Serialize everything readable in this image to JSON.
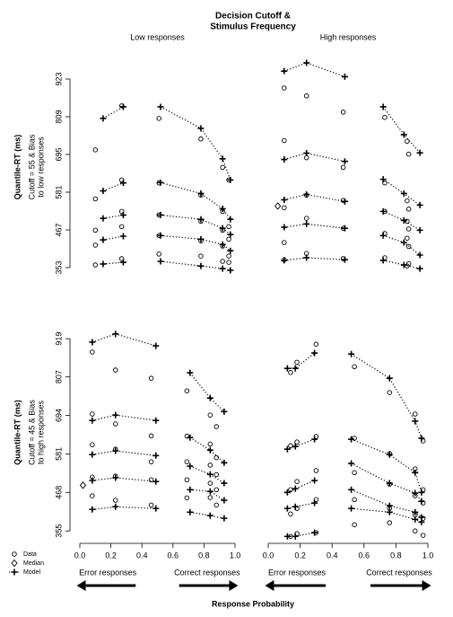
{
  "figure": {
    "title": [
      "Decision Cutoff &",
      "Stimulus Frequency"
    ],
    "xlabel": "Response Probability",
    "legend": [
      "Data",
      "Median",
      "Model"
    ]
  },
  "chart_data": [
    {
      "type": "quantile-probability",
      "title": "Low responses",
      "ylabel": "Quantile-RT (ms)",
      "ylabel2": [
        "Cutoff = 55 & Bias",
        "to low responses"
      ],
      "xlim": [
        0,
        1
      ],
      "ylim": [
        334,
        980
      ],
      "yticks": [
        353,
        467,
        581,
        695,
        809,
        923
      ],
      "clusters": [
        {
          "data_x": [
            0.1,
            0.27
          ],
          "data_q": [
            [
              361,
              380
            ],
            [
              421,
              477
            ],
            [
              466,
              523
            ],
            [
              561,
              618
            ],
            [
              709,
              842
            ]
          ],
          "model_x": [
            0.15,
            0.28
          ],
          "model_q": [
            [
              364,
              369
            ],
            [
              437,
              448
            ],
            [
              502,
              512
            ],
            [
              585,
              609
            ],
            [
              804,
              839
            ]
          ]
        },
        {
          "data_x": [
            0.51,
            0.78,
            0.92,
            0.96
          ],
          "data_q": [
            [
              394,
              388,
              372,
              369
            ],
            [
              450,
              434,
              418,
              388
            ],
            [
              512,
              493,
              466,
              439
            ],
            [
              609,
              572,
              523,
              477
            ],
            [
              804,
              742,
              656,
              618
            ]
          ],
          "model_x": [
            0.52,
            0.78,
            0.92,
            0.97
          ],
          "model_q": [
            [
              372,
              358,
              350,
              345
            ],
            [
              450,
              439,
              423,
              404
            ],
            [
              512,
              499,
              472,
              453
            ],
            [
              610,
              577,
              531,
              499
            ],
            [
              839,
              774,
              682,
              618
            ]
          ]
        }
      ]
    },
    {
      "type": "quantile-probability",
      "title": "High responses",
      "xlim": [
        0,
        1
      ],
      "ylim": [
        334,
        980
      ],
      "median": {
        "x": 0.06,
        "y": 539
      },
      "clusters": [
        {
          "data_x": [
            0.1,
            0.24,
            0.47
          ],
          "data_q": [
            [
              377,
              396,
              380
            ],
            [
              429,
              502,
              472
            ],
            [
              534,
              572,
              556
            ],
            [
              737,
              685,
              656
            ],
            [
              896,
              872,
              823
            ]
          ],
          "model_x": [
            0.1,
            0.24,
            0.48
          ],
          "model_q": [
            [
              375,
              383,
              377
            ],
            [
              475,
              485,
              472
            ],
            [
              558,
              574,
              553
            ],
            [
              680,
              699,
              674
            ],
            [
              947,
              972,
              930
            ]
          ]
        },
        {
          "data_x": [
            0.73,
            0.87,
            0.88
          ],
          "data_q": [
            [
              383,
              358,
              365
            ],
            [
              456,
              442,
              417
            ],
            [
              523,
              493,
              470
            ],
            [
              609,
              555,
              530
            ],
            [
              807,
              735,
              696
            ]
          ],
          "model_x": [
            0.72,
            0.85,
            0.95
          ],
          "model_q": [
            [
              375,
              361,
              350
            ],
            [
              450,
              429,
              391
            ],
            [
              523,
              496,
              466
            ],
            [
              620,
              577,
              542
            ],
            [
              839,
              755,
              700
            ]
          ]
        }
      ]
    },
    {
      "type": "quantile-probability",
      "ylabel": "Quantile-RT (ms)",
      "ylabel2": [
        "Cutoff = 45 & Bias",
        "to high responses"
      ],
      "xlim": [
        0,
        1
      ],
      "ylim": [
        337,
        951
      ],
      "yticks": [
        355,
        468,
        581,
        694,
        807,
        919
      ],
      "xticks": [
        {
          "value": 0,
          "label": "0.0"
        },
        0.2,
        0.4,
        0.6,
        0.8,
        {
          "value": 1,
          "label": "1.0"
        }
      ],
      "arrow_labels": [
        "Error responses",
        "Correct responses"
      ],
      "median": {
        "x": 0.02,
        "y": 489
      },
      "clusters": [
        {
          "data_x": [
            0.08,
            0.23,
            0.46
          ],
          "data_q": [
            [
              458,
              445,
              431
            ],
            [
              513,
              516,
              505
            ],
            [
              608,
              595,
              558
            ],
            [
              698,
              669,
              634
            ],
            [
              880,
              827,
              803
            ]
          ],
          "model_x": [
            0.08,
            0.23,
            0.49
          ],
          "model_q": [
            [
              418,
              426,
              421
            ],
            [
              503,
              511,
              500
            ],
            [
              579,
              590,
              576
            ],
            [
              679,
              695,
              679
            ],
            [
              909,
              933,
              898
            ]
          ]
        },
        {
          "data_x": [
            0.69,
            0.84,
            0.88
          ],
          "data_q": [
            [
              452,
              453,
              431
            ],
            [
              505,
              495,
              476
            ],
            [
              558,
              548,
              520
            ],
            [
              633,
              610,
              570
            ],
            [
              766,
              695,
              661
            ]
          ],
          "model_x": [
            0.71,
            0.84,
            0.93
          ],
          "model_q": [
            [
              410,
              400,
              392
            ],
            [
              476,
              471,
              445
            ],
            [
              545,
              521,
              495
            ],
            [
              629,
              592,
              555
            ],
            [
              819,
              745,
              705
            ]
          ]
        }
      ]
    },
    {
      "type": "quantile-probability",
      "xlim": [
        0,
        1
      ],
      "ylim": [
        337,
        951
      ],
      "xticks": [
        {
          "value": 0,
          "label": "0.0"
        },
        0.2,
        0.4,
        0.6,
        0.8,
        {
          "value": 1,
          "label": "1.0"
        }
      ],
      "arrow_labels": [
        "Error responses",
        "Correct responses"
      ],
      "clusters": [
        {
          "data_x": [
            0.14,
            0.18,
            0.3
          ],
          "data_q": [
            [
              339,
              347,
              350
            ],
            [
              405,
              421,
              447
            ],
            [
              476,
              500,
              532
            ],
            [
              605,
              616,
              632
            ],
            [
              820,
              850,
              903
            ]
          ],
          "model_x": [
            0.12,
            0.17,
            0.29
          ],
          "model_q": [
            [
              339,
              339,
              350
            ],
            [
              421,
              426,
              437
            ],
            [
              468,
              479,
              503
            ],
            [
              595,
              603,
              624
            ],
            [
              832,
              832,
              877
            ]
          ]
        },
        {
          "data_x": [
            0.54,
            0.76,
            0.92,
            0.97
          ],
          "data_q": [
            [
              373,
              379,
              355,
              342
            ],
            [
              447,
              421,
              402,
              392
            ],
            [
              526,
              492,
              458,
              437
            ],
            [
              627,
              582,
              537,
              476
            ],
            [
              837,
              761,
              698,
              619
            ]
          ],
          "model_x": [
            0.52,
            0.76,
            0.92,
            0.96
          ],
          "model_q": [
            [
              421,
              410,
              389,
              381
            ],
            [
              476,
              429,
              410,
              395
            ],
            [
              553,
              495,
              466,
              442
            ],
            [
              624,
              579,
              526,
              468
            ],
            [
              874,
              803,
              677,
              627
            ]
          ]
        }
      ]
    }
  ]
}
